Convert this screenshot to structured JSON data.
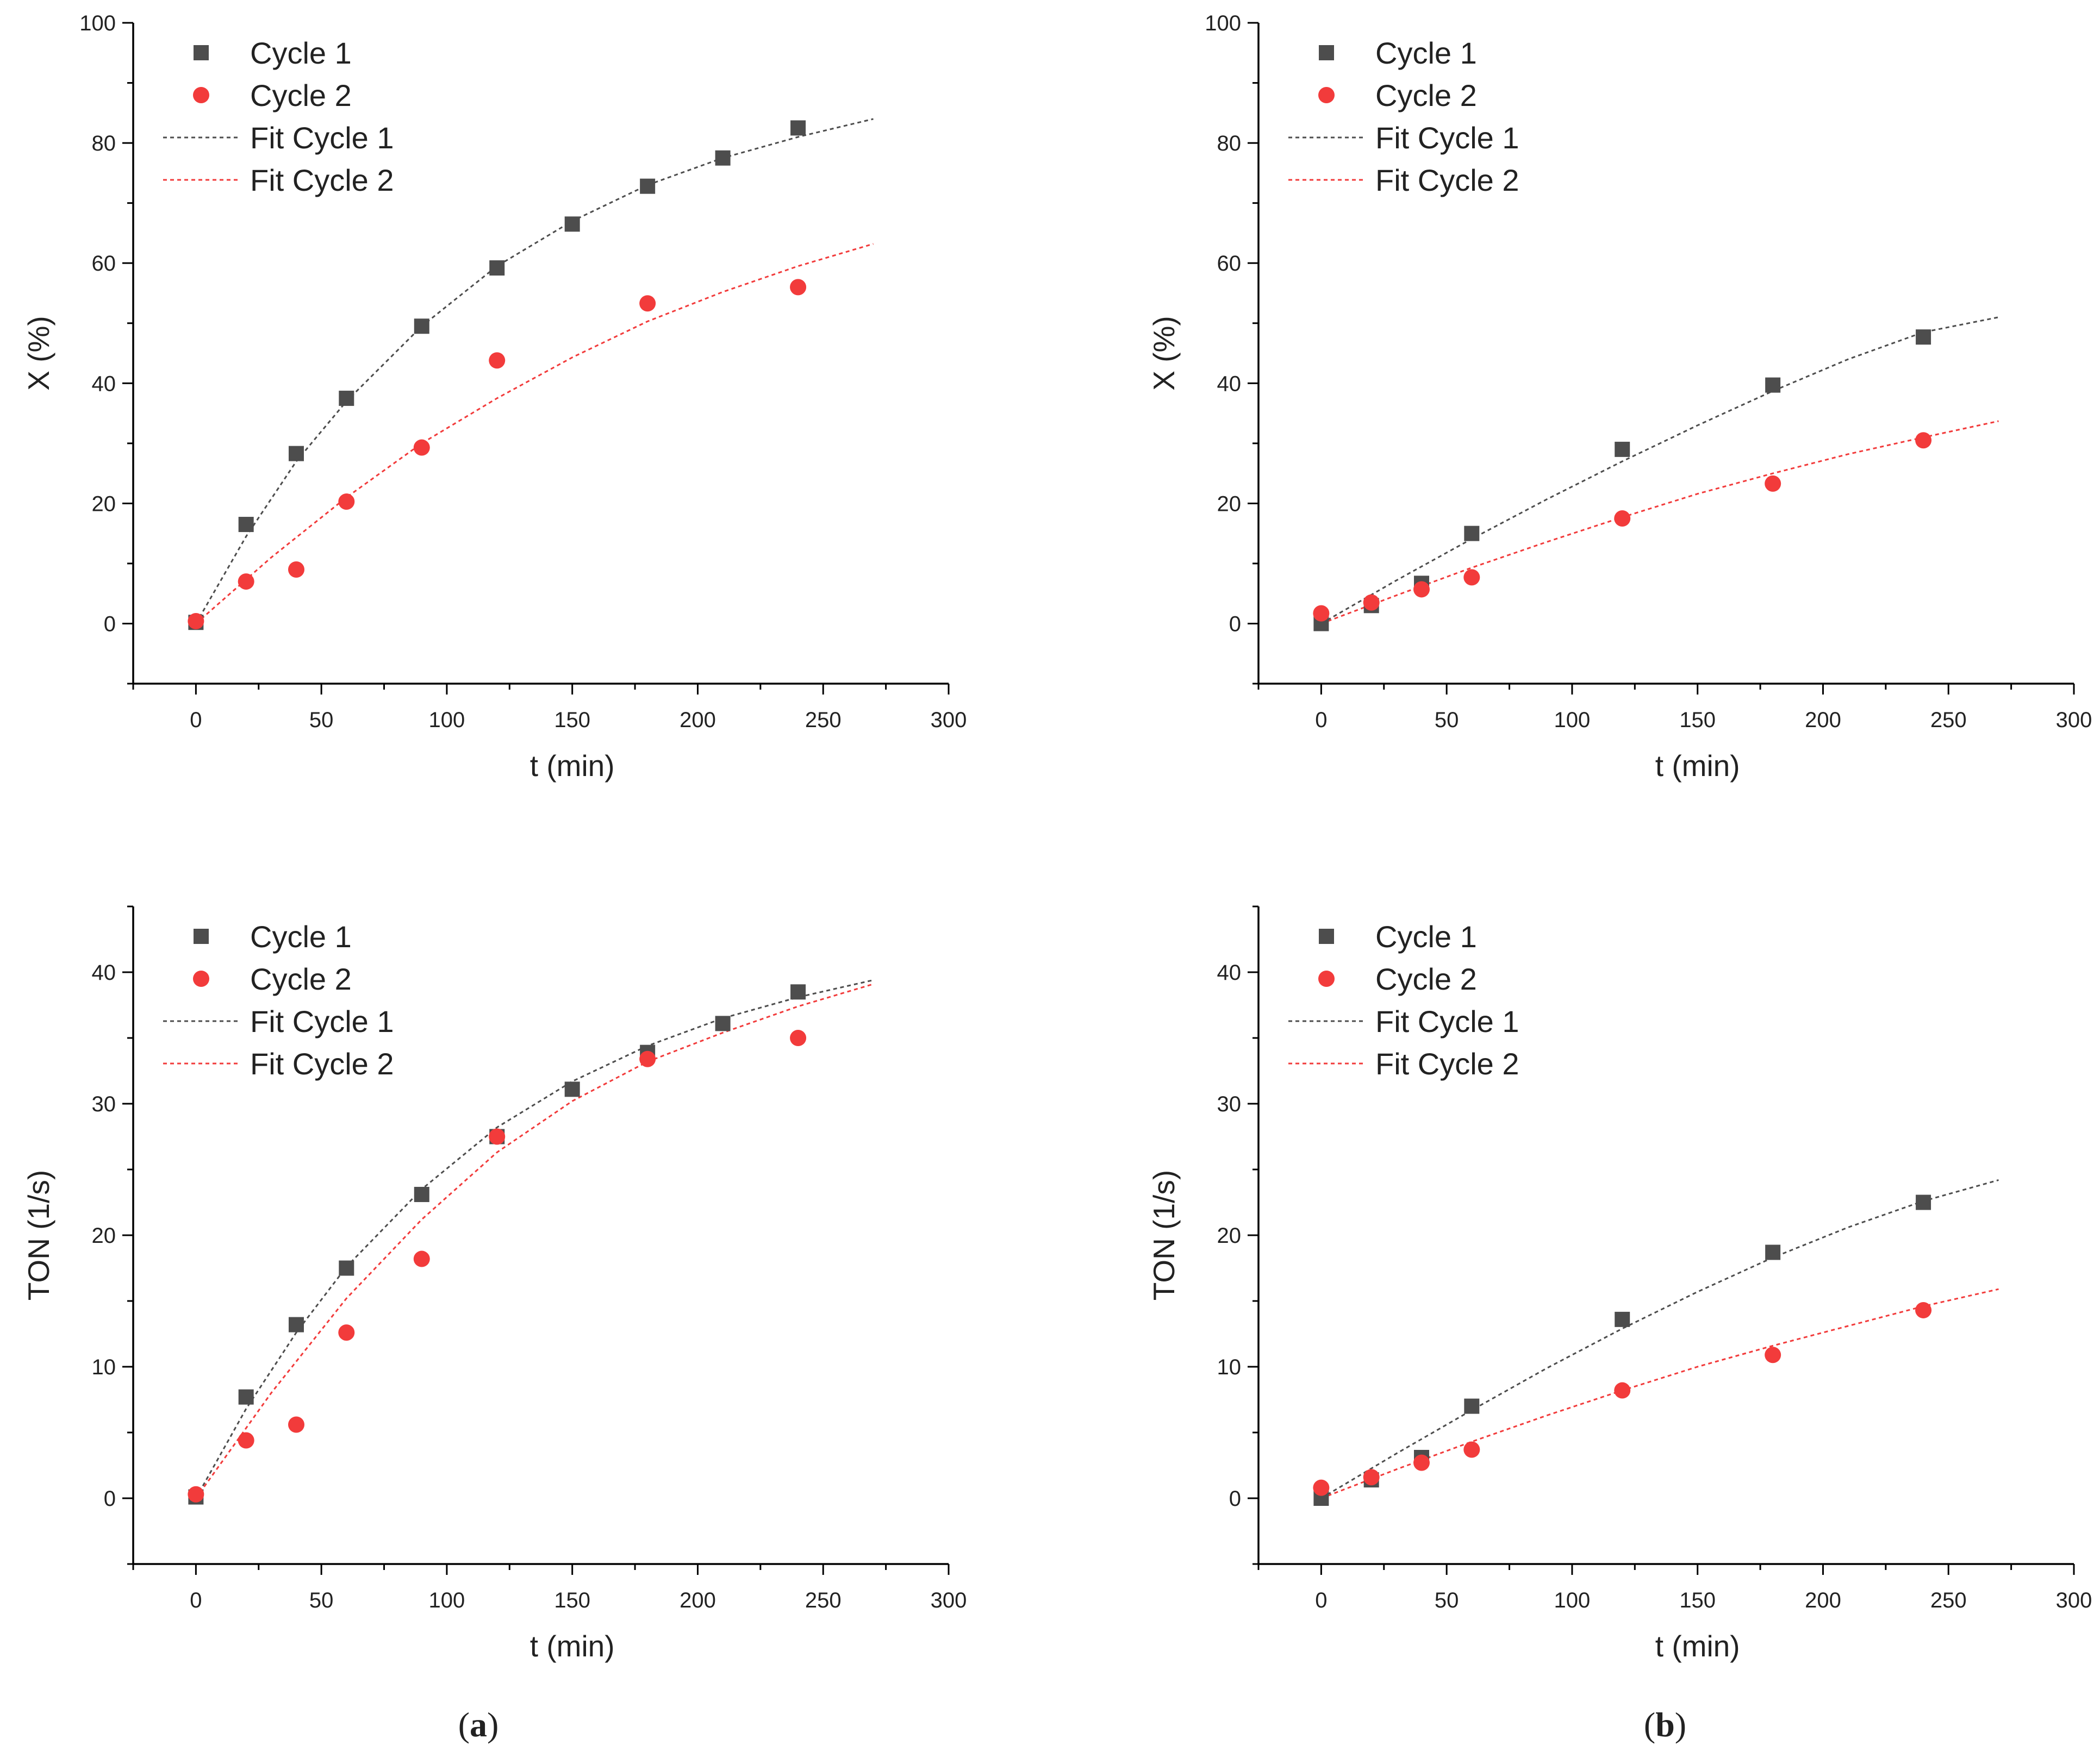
{
  "figure": {
    "panel_labels": [
      {
        "open": "(",
        "letter": "a",
        "close": ")"
      },
      {
        "open": "(",
        "letter": "b",
        "close": ")"
      }
    ]
  },
  "colors": {
    "cycle1": "#4d4d4d",
    "cycle2": "#f23b3b",
    "axis": "#000000"
  },
  "chart_data": [
    {
      "id": "a-conversion",
      "type": "scatter",
      "title": "",
      "xlabel": "t (min)",
      "ylabel": "X (%)",
      "xlim": [
        -25,
        300
      ],
      "ylim": [
        -10,
        100
      ],
      "xticks": [
        0,
        50,
        100,
        150,
        200,
        250,
        300
      ],
      "yticks": [
        0,
        20,
        40,
        60,
        80,
        100
      ],
      "legend_position": "top-left",
      "series": [
        {
          "name": "Cycle 1",
          "kind": "points",
          "marker": "square",
          "color": "#4d4d4d",
          "x": [
            0,
            20,
            40,
            60,
            90,
            120,
            150,
            180,
            210,
            240
          ],
          "y": [
            0.2,
            16.5,
            28.3,
            37.5,
            49.5,
            59.2,
            66.5,
            72.8,
            77.5,
            82.5
          ]
        },
        {
          "name": "Cycle 2",
          "kind": "points",
          "marker": "circle",
          "color": "#f23b3b",
          "x": [
            0,
            20,
            40,
            60,
            90,
            120,
            180,
            240
          ],
          "y": [
            0.4,
            7.0,
            9.0,
            20.3,
            29.3,
            43.8,
            53.3,
            56.0
          ]
        },
        {
          "name": "Fit Cycle 1",
          "kind": "fit",
          "color": "#4d4d4d",
          "x": [
            0,
            20,
            40,
            60,
            90,
            120,
            150,
            180,
            210,
            240,
            270
          ],
          "y": [
            0,
            14.5,
            27.0,
            37.0,
            49.5,
            59.5,
            67.0,
            73.0,
            77.5,
            81.0,
            84.0
          ]
        },
        {
          "name": "Fit Cycle 2",
          "kind": "fit",
          "color": "#f23b3b",
          "x": [
            0,
            30,
            60,
            90,
            120,
            150,
            180,
            210,
            240,
            270
          ],
          "y": [
            0,
            11.0,
            21.0,
            30.0,
            37.5,
            44.3,
            50.3,
            55.2,
            59.5,
            63.2
          ]
        }
      ]
    },
    {
      "id": "b-conversion",
      "type": "scatter",
      "title": "",
      "xlabel": "t (min)",
      "ylabel": "X (%)",
      "xlim": [
        -25,
        300
      ],
      "ylim": [
        -10,
        100
      ],
      "xticks": [
        0,
        50,
        100,
        150,
        200,
        250,
        300
      ],
      "yticks": [
        0,
        20,
        40,
        60,
        80,
        100
      ],
      "legend_position": "top-left",
      "series": [
        {
          "name": "Cycle 1",
          "kind": "points",
          "marker": "square",
          "color": "#4d4d4d",
          "x": [
            0,
            20,
            40,
            60,
            120,
            180,
            240
          ],
          "y": [
            0,
            3.0,
            6.7,
            15.0,
            29.0,
            39.7,
            47.7
          ]
        },
        {
          "name": "Cycle 2",
          "kind": "points",
          "marker": "circle",
          "color": "#f23b3b",
          "x": [
            0,
            20,
            40,
            60,
            120,
            180,
            240
          ],
          "y": [
            1.7,
            3.5,
            5.7,
            7.7,
            17.5,
            23.3,
            30.5
          ]
        },
        {
          "name": "Fit Cycle 1",
          "kind": "fit",
          "color": "#4d4d4d",
          "x": [
            0,
            30,
            60,
            90,
            120,
            150,
            180,
            210,
            240,
            270
          ],
          "y": [
            0,
            7.2,
            14.1,
            20.7,
            27.0,
            33.0,
            38.7,
            44.0,
            48.5,
            51.0
          ]
        },
        {
          "name": "Fit Cycle 2",
          "kind": "fit",
          "color": "#f23b3b",
          "x": [
            0,
            30,
            60,
            90,
            120,
            150,
            180,
            210,
            240,
            270
          ],
          "y": [
            0,
            4.7,
            9.3,
            13.6,
            17.7,
            21.6,
            25.0,
            28.2,
            31.0,
            33.7
          ]
        }
      ]
    },
    {
      "id": "a-ton",
      "type": "scatter",
      "title": "",
      "xlabel": "t (min)",
      "ylabel": "TON (1/s)",
      "xlim": [
        -25,
        300
      ],
      "ylim": [
        -5,
        45
      ],
      "xticks": [
        0,
        50,
        100,
        150,
        200,
        250,
        300
      ],
      "yticks": [
        0,
        10,
        20,
        30,
        40
      ],
      "legend_position": "top-left",
      "series": [
        {
          "name": "Cycle 1",
          "kind": "points",
          "marker": "square",
          "color": "#4d4d4d",
          "x": [
            0,
            20,
            40,
            60,
            90,
            120,
            150,
            180,
            210,
            240
          ],
          "y": [
            0.1,
            7.7,
            13.2,
            17.5,
            23.1,
            27.5,
            31.1,
            33.9,
            36.1,
            38.5
          ]
        },
        {
          "name": "Cycle 2",
          "kind": "points",
          "marker": "circle",
          "color": "#f23b3b",
          "x": [
            0,
            20,
            40,
            60,
            90,
            120,
            180,
            240
          ],
          "y": [
            0.3,
            4.4,
            5.6,
            12.6,
            18.2,
            27.5,
            33.4,
            35.0
          ]
        },
        {
          "name": "Fit Cycle 1",
          "kind": "fit",
          "color": "#4d4d4d",
          "x": [
            0,
            20,
            40,
            60,
            90,
            120,
            150,
            180,
            210,
            240,
            270
          ],
          "y": [
            0,
            6.8,
            12.6,
            17.6,
            23.5,
            28.2,
            31.7,
            34.4,
            36.5,
            38.1,
            39.4
          ]
        },
        {
          "name": "Fit Cycle 2",
          "kind": "fit",
          "color": "#f23b3b",
          "x": [
            0,
            30,
            60,
            90,
            120,
            150,
            180,
            210,
            240,
            270
          ],
          "y": [
            0,
            8.0,
            15.2,
            21.2,
            26.3,
            30.2,
            33.2,
            35.4,
            37.4,
            39.1
          ]
        }
      ]
    },
    {
      "id": "b-ton",
      "type": "scatter",
      "title": "",
      "xlabel": "t (min)",
      "ylabel": "TON (1/s)",
      "xlim": [
        -25,
        300
      ],
      "ylim": [
        -5,
        45
      ],
      "xticks": [
        0,
        50,
        100,
        150,
        200,
        250,
        300
      ],
      "yticks": [
        0,
        10,
        20,
        30,
        40
      ],
      "legend_position": "top-left",
      "series": [
        {
          "name": "Cycle 1",
          "kind": "points",
          "marker": "square",
          "color": "#4d4d4d",
          "x": [
            0,
            20,
            40,
            60,
            120,
            180,
            240
          ],
          "y": [
            0,
            1.4,
            3.1,
            7.0,
            13.6,
            18.7,
            22.5
          ]
        },
        {
          "name": "Cycle 2",
          "kind": "points",
          "marker": "circle",
          "color": "#f23b3b",
          "x": [
            0,
            20,
            40,
            60,
            120,
            180,
            240
          ],
          "y": [
            0.8,
            1.6,
            2.7,
            3.7,
            8.2,
            10.9,
            14.3
          ]
        },
        {
          "name": "Fit Cycle 1",
          "kind": "fit",
          "color": "#4d4d4d",
          "x": [
            0,
            30,
            60,
            90,
            120,
            150,
            180,
            210,
            240,
            270
          ],
          "y": [
            0,
            3.4,
            6.7,
            9.9,
            12.9,
            15.7,
            18.3,
            20.6,
            22.6,
            24.2
          ]
        },
        {
          "name": "Fit Cycle 2",
          "kind": "fit",
          "color": "#f23b3b",
          "x": [
            0,
            30,
            60,
            90,
            120,
            150,
            180,
            210,
            240,
            270
          ],
          "y": [
            0,
            2.2,
            4.3,
            6.3,
            8.2,
            10.0,
            11.6,
            13.1,
            14.6,
            15.9
          ]
        }
      ]
    }
  ]
}
